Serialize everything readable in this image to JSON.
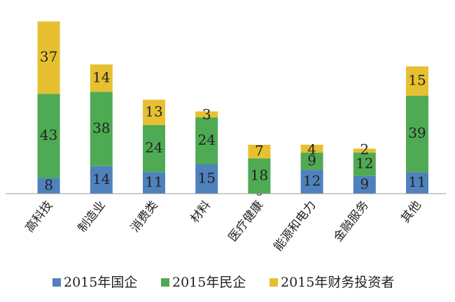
{
  "chart_data": {
    "type": "bar",
    "stacked": true,
    "categories": [
      "高科技",
      "制造业",
      "消费类",
      "材料",
      "医疗健康",
      "能源和电力",
      "金融服务",
      "其他"
    ],
    "series": [
      {
        "name": "2015年国企",
        "color": "#4f81bd",
        "values": [
          8,
          14,
          11,
          15,
          0,
          12,
          9,
          11
        ]
      },
      {
        "name": "2015年民企",
        "color": "#4faa54",
        "values": [
          43,
          38,
          24,
          24,
          18,
          9,
          12,
          39
        ]
      },
      {
        "name": "2015年财务投资者",
        "color": "#e6c030",
        "values": [
          37,
          14,
          13,
          3,
          7,
          4,
          2,
          15
        ]
      }
    ],
    "grid": false,
    "legend": "bottom"
  }
}
